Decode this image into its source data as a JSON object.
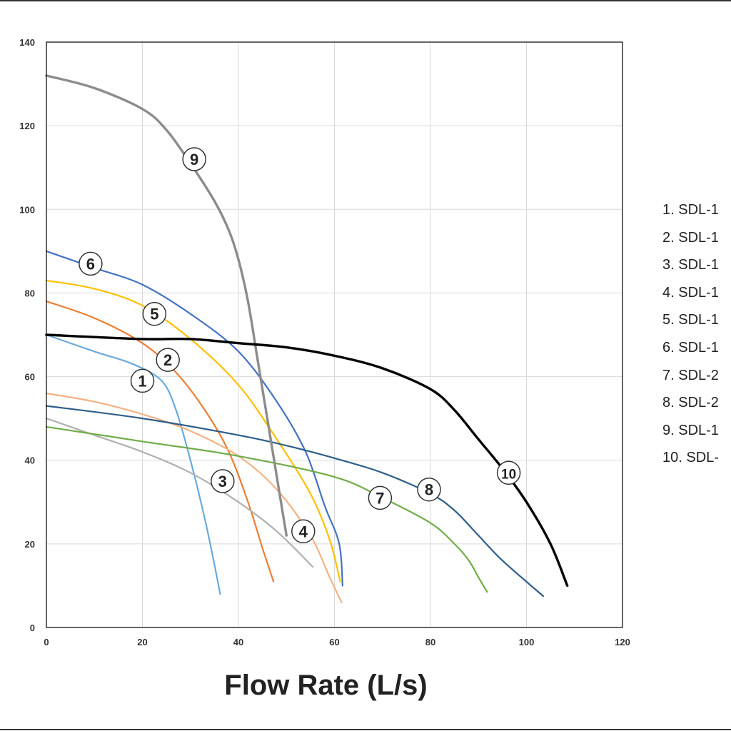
{
  "chart_data": {
    "type": "line",
    "title": "",
    "xlabel": "Flow Rate (L/s)",
    "ylabel": "",
    "xlim": [
      0,
      120
    ],
    "ylim": [
      0,
      140
    ],
    "x_ticks": [
      "0",
      "20",
      "40",
      "60",
      "80",
      "100",
      "120"
    ],
    "y_ticks": [
      "0",
      "20",
      "40",
      "60",
      "80",
      "100",
      "120",
      "140"
    ],
    "grid": true,
    "legend_position": "right",
    "legend_items": [
      "1. SDL-1",
      "2. SDL-1",
      "3. SDL-1",
      "4. SDL-1",
      "5. SDL-1",
      "6. SDL-1",
      "7. SDL-2",
      "8. SDL-2",
      "9. SDL-1",
      "10. SDL-"
    ],
    "series": [
      {
        "marker": "1",
        "color": "#6aaadd",
        "label_at": [
          20,
          59
        ],
        "points": [
          [
            0,
            70
          ],
          [
            10,
            66
          ],
          [
            18,
            63
          ],
          [
            24,
            59
          ],
          [
            27,
            52
          ],
          [
            30,
            40
          ],
          [
            33,
            26
          ],
          [
            35,
            15
          ],
          [
            36.2,
            8
          ]
        ]
      },
      {
        "marker": "2",
        "color": "#ed7d31",
        "label_at": [
          25.3,
          64
        ],
        "points": [
          [
            0,
            78
          ],
          [
            10,
            74
          ],
          [
            20,
            68
          ],
          [
            27,
            61
          ],
          [
            33,
            52
          ],
          [
            38,
            42
          ],
          [
            42,
            30
          ],
          [
            45,
            19
          ],
          [
            47.3,
            11
          ]
        ]
      },
      {
        "marker": "3",
        "color": "#b0b0b0",
        "label_at": [
          36.7,
          35
        ],
        "points": [
          [
            0,
            50
          ],
          [
            10,
            46
          ],
          [
            20,
            42
          ],
          [
            30,
            37
          ],
          [
            40,
            30
          ],
          [
            48,
            23
          ],
          [
            55.5,
            14.5
          ]
        ]
      },
      {
        "marker": "4",
        "color": "#f4b183",
        "label_at": [
          53.5,
          23
        ],
        "points": [
          [
            0,
            56
          ],
          [
            10,
            54
          ],
          [
            20,
            51
          ],
          [
            30,
            47
          ],
          [
            40,
            41
          ],
          [
            48,
            33
          ],
          [
            55,
            22
          ],
          [
            59,
            12
          ],
          [
            61.5,
            6
          ]
        ]
      },
      {
        "marker": "5",
        "color": "#ffc000",
        "label_at": [
          22.5,
          75
        ],
        "points": [
          [
            0,
            83
          ],
          [
            10,
            81
          ],
          [
            20,
            77
          ],
          [
            30,
            69
          ],
          [
            40,
            58
          ],
          [
            48,
            45
          ],
          [
            55,
            32
          ],
          [
            59,
            21
          ],
          [
            61.2,
            11
          ]
        ]
      },
      {
        "marker": "6",
        "color": "#4472c4",
        "label_at": [
          9.2,
          87
        ],
        "points": [
          [
            0,
            90
          ],
          [
            10,
            86
          ],
          [
            20,
            82
          ],
          [
            30,
            75
          ],
          [
            40,
            66
          ],
          [
            48,
            54
          ],
          [
            54,
            42
          ],
          [
            58,
            29
          ],
          [
            61,
            20
          ],
          [
            61.7,
            10
          ]
        ]
      },
      {
        "marker": "7",
        "color": "#70ad47",
        "label_at": [
          69.5,
          31
        ],
        "points": [
          [
            0,
            48
          ],
          [
            20,
            44.5
          ],
          [
            40,
            41
          ],
          [
            60,
            36
          ],
          [
            70,
            31
          ],
          [
            80,
            25
          ],
          [
            85,
            20
          ],
          [
            88,
            16
          ],
          [
            90,
            12
          ],
          [
            91.8,
            8.5
          ]
        ]
      },
      {
        "marker": "8",
        "color": "#2e5f8a",
        "label_at": [
          79.7,
          33
        ],
        "points": [
          [
            0,
            53
          ],
          [
            20,
            50
          ],
          [
            40,
            46
          ],
          [
            50,
            43.5
          ],
          [
            60,
            40.5
          ],
          [
            70,
            37
          ],
          [
            80,
            32
          ],
          [
            85,
            28
          ],
          [
            90,
            22
          ],
          [
            95,
            16
          ],
          [
            103.5,
            7.5
          ]
        ]
      },
      {
        "marker": "9",
        "color": "#8c8c8c",
        "label_at": [
          30.8,
          112
        ],
        "points": [
          [
            0,
            132
          ],
          [
            10,
            129
          ],
          [
            20,
            124
          ],
          [
            25,
            119
          ],
          [
            30,
            111
          ],
          [
            35,
            102
          ],
          [
            38,
            95
          ],
          [
            40,
            88
          ],
          [
            42,
            78
          ],
          [
            44,
            64
          ],
          [
            46,
            50
          ],
          [
            48,
            36
          ],
          [
            50,
            22
          ]
        ]
      },
      {
        "marker": "10",
        "color": "#000000",
        "label_at": [
          96.3,
          37
        ],
        "points": [
          [
            0,
            70
          ],
          [
            20,
            69
          ],
          [
            30,
            69
          ],
          [
            40,
            68
          ],
          [
            50,
            67
          ],
          [
            60,
            65
          ],
          [
            70,
            62
          ],
          [
            80,
            57
          ],
          [
            85,
            52
          ],
          [
            90,
            45
          ],
          [
            95,
            38
          ],
          [
            100,
            30
          ],
          [
            105,
            20
          ],
          [
            108.5,
            10
          ]
        ]
      }
    ]
  }
}
